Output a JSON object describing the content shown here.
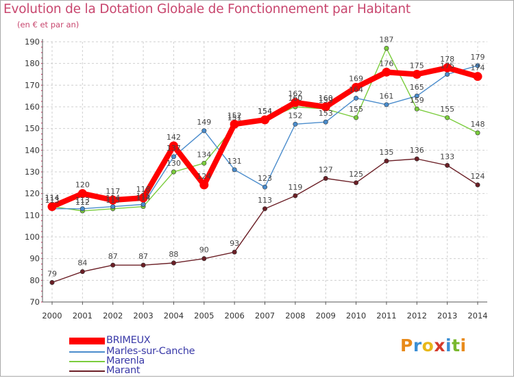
{
  "title": "Evolution de la Dotation Globale de Fonctionnement par Habitant",
  "subtitle": "(en € et par an)",
  "logo": {
    "text": "Proxiti",
    "letters": [
      "P",
      "r",
      "o",
      "x",
      "i",
      "t",
      "i"
    ],
    "colors": [
      "#e88a1a",
      "#3b8fd4",
      "#e8b81a",
      "#d43b2b",
      "#3b8fd4",
      "#7ab82e",
      "#e88a1a"
    ]
  },
  "chart_data": {
    "type": "line",
    "title": "Evolution de la Dotation Globale de Fonctionnement par Habitant",
    "subtitle": "(en € et par an)",
    "xlabel": "",
    "ylabel": "",
    "ylim": [
      70,
      190
    ],
    "yticks": [
      70,
      80,
      90,
      100,
      110,
      120,
      130,
      140,
      150,
      160,
      170,
      180,
      190
    ],
    "grid": true,
    "legend_position": "bottom-left",
    "x": [
      "2000",
      "2001",
      "2002",
      "2003",
      "2004",
      "2005",
      "2006",
      "2007",
      "2008",
      "2009",
      "2010",
      "2011",
      "2012",
      "2013",
      "2014"
    ],
    "series": [
      {
        "name": "Marant",
        "color": "#6b1f26",
        "values": [
          79,
          84,
          87,
          87,
          88,
          90,
          93,
          113,
          119,
          127,
          125,
          135,
          136,
          133,
          124
        ],
        "labels": [
          "79",
          "84",
          "87",
          "87",
          "88",
          "90",
          "93",
          "113",
          "119",
          "127",
          "125",
          "135",
          "136",
          "133",
          "124"
        ]
      },
      {
        "name": "Marenla",
        "color": "#7acc3c",
        "values": [
          114,
          112,
          113,
          114,
          130,
          134,
          151,
          154,
          160,
          159,
          155,
          187,
          159,
          155,
          148
        ],
        "labels": [
          "114",
          "112",
          "113",
          "114",
          "130",
          "134",
          "151",
          "154",
          "160",
          "159",
          "155",
          "187",
          "159",
          "155",
          "148"
        ]
      },
      {
        "name": "Marles-sur-Canche",
        "color": "#4a8ccc",
        "values": [
          113,
          113,
          114,
          115,
          137,
          149,
          131,
          123,
          152,
          153,
          164,
          161,
          165,
          175,
          179
        ],
        "labels": [
          "113",
          "113",
          "114",
          "115",
          "137",
          "149",
          "131",
          "123",
          "152",
          "153",
          "164",
          "161",
          "165",
          "175",
          "179"
        ]
      },
      {
        "name": "BRIMEUX",
        "color": "#ff0000",
        "values": [
          114,
          120,
          117,
          118,
          142,
          124,
          152,
          154,
          162,
          160,
          169,
          176,
          175,
          178,
          174
        ],
        "labels": [
          "114",
          "120",
          "117",
          "118",
          "142",
          "124",
          "152",
          "154",
          "162",
          "160",
          "169",
          "176",
          "175",
          "178",
          "174"
        ]
      }
    ],
    "legend": [
      "BRIMEUX",
      "Marles-sur-Canche",
      "Marenla",
      "Marant"
    ]
  }
}
